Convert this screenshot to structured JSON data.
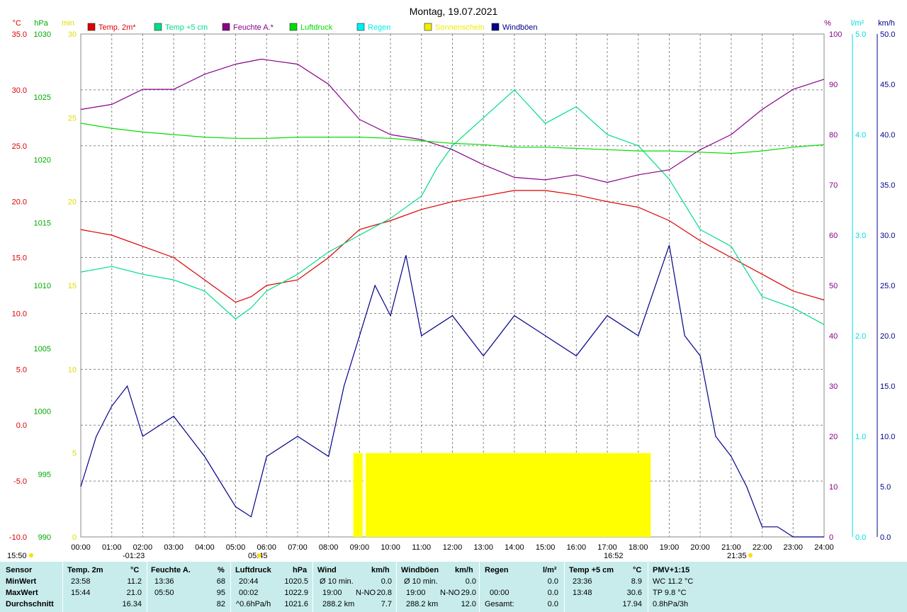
{
  "title": "Montag, 19.07.2021",
  "legend": [
    {
      "label": "Temp. 2m*",
      "color": "#dd0000"
    },
    {
      "label": "Temp +5 cm",
      "color": "#00dd88"
    },
    {
      "label": "Feuchte A.*",
      "color": "#880088"
    },
    {
      "label": "Luftdruck",
      "color": "#00dd00"
    },
    {
      "label": "Regen",
      "color": "#00eeee"
    },
    {
      "label": "Sonnenschein",
      "color": "#eeee00"
    },
    {
      "label": "Windböen",
      "color": "#000088"
    }
  ],
  "axes": {
    "temp": {
      "unit": "°C",
      "color": "#dd0000",
      "ticks": [
        "35.0",
        "30.0",
        "25.0",
        "20.0",
        "15.0",
        "10.0",
        "5.0",
        "0.0",
        "-5.0",
        "-10.0"
      ]
    },
    "pressure": {
      "unit": "hPa",
      "color": "#00aa00",
      "ticks": [
        "1030",
        "1025",
        "1020",
        "1015",
        "1010",
        "1005",
        "1000",
        "995",
        "990"
      ]
    },
    "sun": {
      "unit": "min",
      "color": "#dddd00",
      "ticks": [
        "30",
        "25",
        "20",
        "15",
        "10",
        "5",
        "0"
      ]
    },
    "humidity": {
      "unit": "%",
      "color": "#880088",
      "ticks": [
        "100",
        "90",
        "80",
        "70",
        "60",
        "50",
        "40",
        "30",
        "20",
        "10",
        "0"
      ]
    },
    "rain": {
      "unit": "l/m²",
      "color": "#00dddd",
      "ticks": [
        "5.0",
        "4.0",
        "3.0",
        "2.0",
        "1.0",
        "0.0"
      ]
    },
    "wind": {
      "unit": "km/h",
      "color": "#000088",
      "ticks": [
        "50.0",
        "45.0",
        "40.0",
        "35.0",
        "30.0",
        "25.0",
        "20.0",
        "15.0",
        "10.0",
        "5.0",
        "0.0"
      ]
    }
  },
  "x_ticks": [
    "00:00",
    "01:00",
    "02:00",
    "03:00",
    "04:00",
    "05:00",
    "06:00",
    "07:00",
    "08:00",
    "09:00",
    "10:00",
    "11:00",
    "12:00",
    "13:00",
    "14:00",
    "15:00",
    "16:00",
    "17:00",
    "18:00",
    "19:00",
    "20:00",
    "21:00",
    "22:00",
    "23:00",
    "24:00"
  ],
  "events": {
    "sun_left": "15:50",
    "moon_down": "-01:23",
    "sunrise": "05:45",
    "moon_up": "16:52",
    "sunset": "21:35"
  },
  "chart_data": {
    "type": "line",
    "x_range": [
      0,
      24
    ],
    "series": [
      {
        "name": "Temp. 2m*",
        "axis": "temp",
        "points": [
          [
            0,
            17.5
          ],
          [
            1,
            17
          ],
          [
            2,
            16
          ],
          [
            3,
            15
          ],
          [
            4,
            13
          ],
          [
            5,
            11
          ],
          [
            5.5,
            11.5
          ],
          [
            6,
            12.5
          ],
          [
            7,
            13
          ],
          [
            8,
            15
          ],
          [
            9,
            17.5
          ],
          [
            10,
            18.3
          ],
          [
            11,
            19.3
          ],
          [
            12,
            20
          ],
          [
            13,
            20.5
          ],
          [
            14,
            21
          ],
          [
            15,
            21
          ],
          [
            16,
            20.6
          ],
          [
            17,
            20
          ],
          [
            18,
            19.5
          ],
          [
            19,
            18.3
          ],
          [
            20,
            16.5
          ],
          [
            21,
            15
          ],
          [
            22,
            13.5
          ],
          [
            23,
            12
          ],
          [
            24,
            11.2
          ]
        ]
      },
      {
        "name": "Temp +5 cm",
        "axis": "temp",
        "points": [
          [
            0,
            13.7
          ],
          [
            1,
            14.2
          ],
          [
            2,
            13.5
          ],
          [
            3,
            13
          ],
          [
            4,
            12
          ],
          [
            5,
            9.5
          ],
          [
            5.5,
            10.5
          ],
          [
            6,
            12
          ],
          [
            7,
            13.5
          ],
          [
            8,
            15.5
          ],
          [
            9,
            17
          ],
          [
            10,
            18.5
          ],
          [
            11,
            20.5
          ],
          [
            11.5,
            23
          ],
          [
            12,
            25
          ],
          [
            13,
            27.5
          ],
          [
            14,
            30
          ],
          [
            14.5,
            28.5
          ],
          [
            15,
            27
          ],
          [
            16,
            28.5
          ],
          [
            17,
            26
          ],
          [
            18,
            25
          ],
          [
            19,
            22
          ],
          [
            20,
            17.5
          ],
          [
            21,
            16
          ],
          [
            22,
            11.5
          ],
          [
            23,
            10.5
          ],
          [
            24,
            9
          ]
        ]
      },
      {
        "name": "Feuchte A.*",
        "axis": "humidity",
        "points": [
          [
            0,
            85
          ],
          [
            1,
            86
          ],
          [
            2,
            89
          ],
          [
            3,
            89
          ],
          [
            4,
            92
          ],
          [
            5,
            94
          ],
          [
            5.83,
            95
          ],
          [
            7,
            94
          ],
          [
            8,
            90
          ],
          [
            9,
            83
          ],
          [
            10,
            80
          ],
          [
            11,
            79
          ],
          [
            12,
            77
          ],
          [
            13,
            74
          ],
          [
            14,
            71.5
          ],
          [
            15,
            71
          ],
          [
            16,
            72
          ],
          [
            17,
            70.5
          ],
          [
            18,
            72
          ],
          [
            19,
            73
          ],
          [
            20,
            77
          ],
          [
            21,
            80
          ],
          [
            22,
            85
          ],
          [
            23,
            89
          ],
          [
            24,
            91
          ]
        ]
      },
      {
        "name": "Luftdruck",
        "axis": "pressure",
        "points": [
          [
            0,
            1022.9
          ],
          [
            1,
            1022.5
          ],
          [
            2,
            1022.2
          ],
          [
            3,
            1022
          ],
          [
            4,
            1021.8
          ],
          [
            5,
            1021.7
          ],
          [
            6,
            1021.7
          ],
          [
            7,
            1021.8
          ],
          [
            8,
            1021.8
          ],
          [
            9,
            1021.8
          ],
          [
            10,
            1021.7
          ],
          [
            11,
            1021.5
          ],
          [
            12,
            1021.3
          ],
          [
            13,
            1021.2
          ],
          [
            14,
            1021
          ],
          [
            15,
            1021
          ],
          [
            16,
            1020.9
          ],
          [
            17,
            1020.8
          ],
          [
            18,
            1020.7
          ],
          [
            19,
            1020.7
          ],
          [
            20,
            1020.6
          ],
          [
            21,
            1020.5
          ],
          [
            22,
            1020.7
          ],
          [
            23,
            1021
          ],
          [
            24,
            1021.2
          ]
        ]
      },
      {
        "name": "Windböen",
        "axis": "wind",
        "points": [
          [
            0,
            5
          ],
          [
            0.5,
            10
          ],
          [
            1,
            13
          ],
          [
            1.5,
            15
          ],
          [
            2,
            10
          ],
          [
            3,
            12
          ],
          [
            4,
            8
          ],
          [
            5,
            3
          ],
          [
            5.5,
            2
          ],
          [
            6,
            8
          ],
          [
            7,
            10
          ],
          [
            8,
            8
          ],
          [
            8.5,
            15
          ],
          [
            9,
            20
          ],
          [
            9.5,
            25
          ],
          [
            10,
            22
          ],
          [
            10.5,
            28
          ],
          [
            11,
            20
          ],
          [
            12,
            22
          ],
          [
            13,
            18
          ],
          [
            14,
            22
          ],
          [
            15,
            20
          ],
          [
            16,
            18
          ],
          [
            17,
            22
          ],
          [
            18,
            20
          ],
          [
            19,
            29
          ],
          [
            19.5,
            20
          ],
          [
            20,
            18
          ],
          [
            20.5,
            10
          ],
          [
            21,
            8
          ],
          [
            21.5,
            5
          ],
          [
            22,
            1
          ],
          [
            22.5,
            1
          ],
          [
            23,
            0
          ],
          [
            24,
            0
          ]
        ]
      }
    ],
    "sunshine_ranges": [
      [
        8.8,
        9.1
      ],
      [
        9.2,
        18.4
      ]
    ],
    "sunshine_height_min": 5
  },
  "stats": {
    "headers": {
      "sensor": "Sensor",
      "temp2m": "Temp. 2m",
      "temp2m_unit": "°C",
      "hum": "Feuchte A.",
      "hum_unit": "%",
      "press": "Luftdruck",
      "press_unit": "hPa",
      "wind": "Wind",
      "wind_unit": "km/h",
      "gust": "Windböen",
      "gust_unit": "km/h",
      "rain": "Regen",
      "rain_unit": "l/m²",
      "temp5": "Temp +5 cm",
      "temp5_unit": "°C",
      "pmv": "PMV+1:15"
    },
    "rows": {
      "min": "MinWert",
      "max": "MaxWert",
      "avg": "Durchschnitt"
    },
    "temp2m": {
      "min_time": "23:58",
      "min": "11.2",
      "max_time": "15:44",
      "max": "21.0",
      "avg": "16.34"
    },
    "hum": {
      "min_time": "13:36",
      "min": "68",
      "max_time": "05:50",
      "max": "95",
      "avg": "82"
    },
    "press": {
      "min_time": "20:44",
      "min": "1020.5",
      "max_time": "00:02",
      "max": "1022.9",
      "trend": "^0.6hPa/h",
      "avg": "1021.6"
    },
    "wind": {
      "l1": "Ø 10 min.",
      "v1": "0.0",
      "l2": "19:00",
      "l2b": "N-NO",
      "v2": "20.8",
      "l3": "288.2 km",
      "v3": "7.7"
    },
    "gust": {
      "l1": "Ø 10 min.",
      "v1": "0.0",
      "l2": "19:00",
      "l2b": "N-NO",
      "v2": "29.0",
      "l3": "288.2 km",
      "v3": "12.0"
    },
    "rain": {
      "l2": "00:00",
      "v1": "0.0",
      "v2": "0.0",
      "l3": "Gesamt:",
      "v3": "0.0"
    },
    "temp5": {
      "min_time": "23:36",
      "min": "8.9",
      "max_time": "13:48",
      "max": "30.6",
      "avg": "17.94"
    },
    "pmv": {
      "wc": "WC 11.2 °C",
      "tp": "TP 9.8 °C",
      "trend": "0.8hPa/3h"
    }
  }
}
